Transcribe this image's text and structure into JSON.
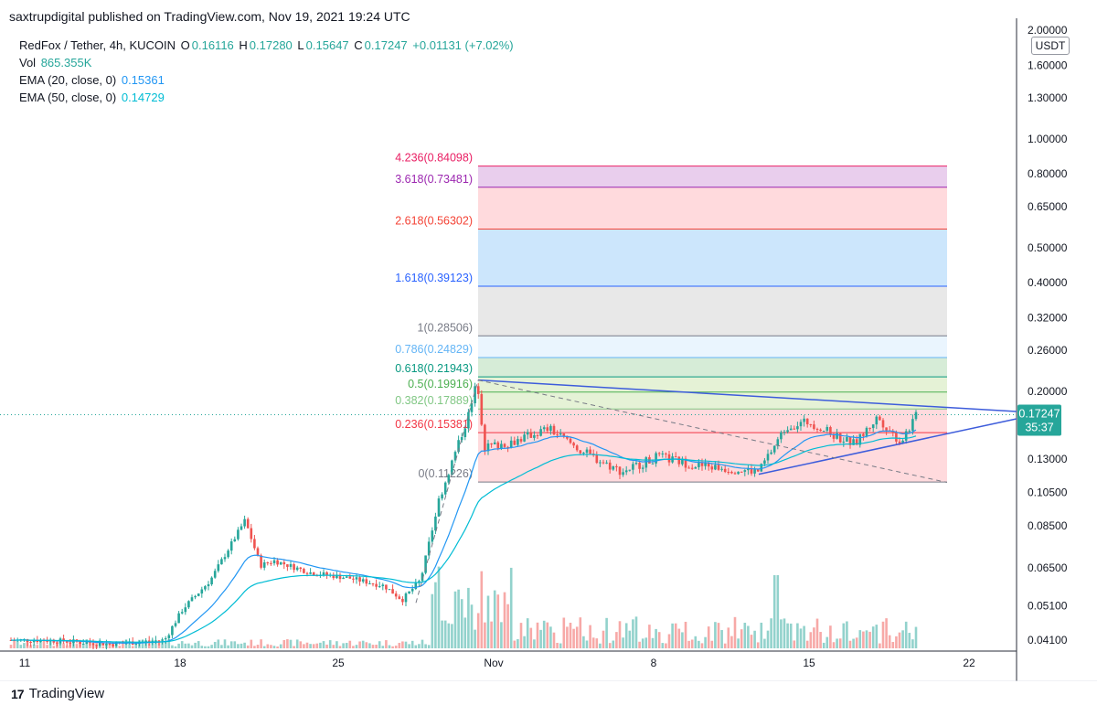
{
  "header": {
    "published": "saxtrupdigital published on TradingView.com, Nov 19, 2021 19:24 UTC"
  },
  "legend": {
    "symbol": "RedFox / Tether, 4h, KUCOIN",
    "o_label": "O",
    "o": "0.16116",
    "h_label": "H",
    "h": "0.17280",
    "l_label": "L",
    "l": "0.15647",
    "c_label": "C",
    "c": "0.17247",
    "change": "+0.01131 (+7.02%)",
    "vol_label": "Vol",
    "vol": "865.355K",
    "ema20_label": "EMA (20, close, 0)",
    "ema20": "0.15361",
    "ema50_label": "EMA (50, close, 0)",
    "ema50": "0.14729"
  },
  "currency": "USDT",
  "last_price": "0.17247",
  "countdown": "35:37",
  "footer": {
    "brand": "TradingView"
  },
  "colors": {
    "up": "#26a69a",
    "down": "#ef5350",
    "ema20": "#2196f3",
    "ema50": "#00bcd4",
    "trendline": "#3d5cdb"
  },
  "chart_data": {
    "type": "candlestick",
    "scale": "log",
    "y_ticks": [
      "2.00000",
      "1.60000",
      "1.30000",
      "1.00000",
      "0.80000",
      "0.65000",
      "0.50000",
      "0.40000",
      "0.32000",
      "0.26000",
      "0.20000",
      "0.13000",
      "0.10500",
      "0.08500",
      "0.06500",
      "0.05100",
      "0.04100"
    ],
    "x_ticks": [
      "11",
      "18",
      "25",
      "Nov",
      "8",
      "15",
      "22"
    ],
    "fib_levels": [
      {
        "label": "4.236(0.84098)",
        "value": 0.84098,
        "color": "#e91e63",
        "fill": "#f8bbd0"
      },
      {
        "label": "3.618(0.73481)",
        "value": 0.73481,
        "color": "#9c27b0",
        "fill": "#e1bee7"
      },
      {
        "label": "2.618(0.56302)",
        "value": 0.56302,
        "color": "#f44336",
        "fill": "#ffcdd2"
      },
      {
        "label": "1.618(0.39123)",
        "value": 0.39123,
        "color": "#2962ff",
        "fill": "#bbdefb"
      },
      {
        "label": "1(0.28506)",
        "value": 0.28506,
        "color": "#787b86",
        "fill": "#e0e0e0"
      },
      {
        "label": "0.786(0.24829)",
        "value": 0.24829,
        "color": "#64b5f6",
        "fill": "#e3f2fd"
      },
      {
        "label": "0.618(0.21943)",
        "value": 0.21943,
        "color": "#089981",
        "fill": "#c8e6c9"
      },
      {
        "label": "0.5(0.19916)",
        "value": 0.19916,
        "color": "#4caf50",
        "fill": "#dcedc8"
      },
      {
        "label": "0.382(0.17889)",
        "value": 0.17889,
        "color": "#81c784",
        "fill": "#dcedc8"
      },
      {
        "label": "0.236(0.15381)",
        "value": 0.15381,
        "color": "#f23645",
        "fill": "#ffcdd2"
      },
      {
        "label": "0(0.11226)",
        "value": 0.11226,
        "color": "#787b86",
        "fill": "#ffcdd2"
      }
    ]
  }
}
